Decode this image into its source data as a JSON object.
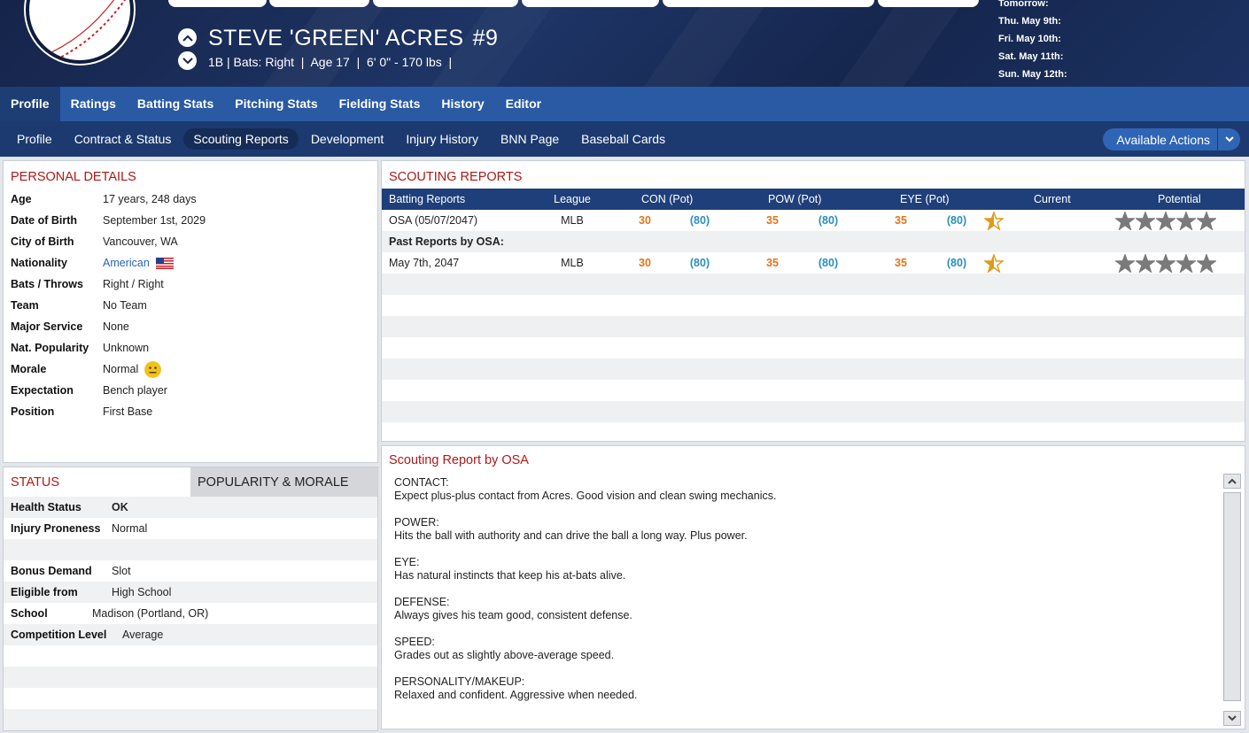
{
  "player": {
    "name": "STEVE 'GREEN' ACRES",
    "number": "#9",
    "position_short": "1B",
    "bats": "Bats: Right",
    "age": "Age 17",
    "size": "6' 0\" - 170 lbs"
  },
  "schedule": [
    "Tomorrow:",
    "Thu. May 9th:",
    "Fri. May 10th:",
    "Sat. May 11th:",
    "Sun. May 12th:"
  ],
  "nav_main": [
    "Profile",
    "Ratings",
    "Batting Stats",
    "Pitching Stats",
    "Fielding Stats",
    "History",
    "Editor"
  ],
  "nav_sub": [
    "Profile",
    "Contract & Status",
    "Scouting Reports",
    "Development",
    "Injury History",
    "BNN Page",
    "Baseball Cards"
  ],
  "available_actions": "Available Actions",
  "personal": {
    "title": "PERSONAL DETAILS",
    "rows": [
      {
        "k": "Age",
        "v": "17 years, 248 days"
      },
      {
        "k": "Date of Birth",
        "v": "September 1st, 2029"
      },
      {
        "k": "City of Birth",
        "v": "Vancouver, WA"
      },
      {
        "k": "Nationality",
        "v": "American"
      },
      {
        "k": "Bats / Throws",
        "v": "Right / Right"
      },
      {
        "k": "Team",
        "v": "No Team"
      },
      {
        "k": "Major Service",
        "v": "None"
      },
      {
        "k": "Nat. Popularity",
        "v": "Unknown"
      },
      {
        "k": "Morale",
        "v": "Normal"
      },
      {
        "k": "Expectation",
        "v": "Bench player"
      },
      {
        "k": "Position",
        "v": "First Base"
      }
    ]
  },
  "status": {
    "tab_status": "STATUS",
    "tab_popularity": "POPULARITY & MORALE",
    "rows": [
      {
        "k": "Health Status",
        "v": "OK"
      },
      {
        "k": "Injury Proneness",
        "v": "Normal"
      },
      {
        "k": "",
        "v": ""
      },
      {
        "k": "Bonus Demand",
        "v": "Slot"
      },
      {
        "k": "Eligible from",
        "v": "High School"
      },
      {
        "k": "School",
        "v": "Madison (Portland, OR)"
      },
      {
        "k": "Competition Level",
        "v": "Average"
      }
    ]
  },
  "scouting": {
    "title": "SCOUTING REPORTS",
    "headers": {
      "reports": "Batting Reports",
      "league": "League",
      "con": "CON (Pot)",
      "pow": "POW (Pot)",
      "eye": "EYE (Pot)",
      "current": "Current",
      "potential": "Potential"
    },
    "rows": [
      {
        "label": "OSA (05/07/2047)",
        "league": "MLB",
        "con": "30",
        "con_pot": "(80)",
        "pow": "35",
        "pow_pot": "(80)",
        "eye": "35",
        "eye_pot": "(80)",
        "current_stars": 0.5,
        "potential_stars": 5
      },
      {
        "label": "Past Reports by OSA:",
        "header": true
      },
      {
        "label": "May 7th, 2047",
        "league": "MLB",
        "con": "30",
        "con_pot": "(80)",
        "pow": "35",
        "pow_pot": "(80)",
        "eye": "35",
        "eye_pot": "(80)",
        "current_stars": 0.5,
        "potential_stars": 5
      }
    ]
  },
  "text_report": {
    "title": "Scouting Report by OSA",
    "sections": [
      {
        "h": "CONTACT:",
        "t": "Expect plus-plus contact from Acres. Good vision and clean swing mechanics."
      },
      {
        "h": "POWER:",
        "t": "Hits the ball with authority and can drive the ball a long way. Plus power."
      },
      {
        "h": "EYE:",
        "t": "Has natural instincts that keep his at-bats alive."
      },
      {
        "h": "DEFENSE:",
        "t": "Always gives his team good, consistent defense."
      },
      {
        "h": "SPEED:",
        "t": "Grades out as slightly above-average speed."
      },
      {
        "h": "PERSONALITY/MAKEUP:",
        "t": "Relaxed and confident. Aggressive when needed."
      }
    ]
  },
  "colors": {
    "accent_red": "#b01818",
    "current_orange": "#e8731a",
    "potential_blue": "#2a8fc0",
    "ok_green": "#2eaa3a",
    "nav_blue": "#2a5aa3"
  }
}
